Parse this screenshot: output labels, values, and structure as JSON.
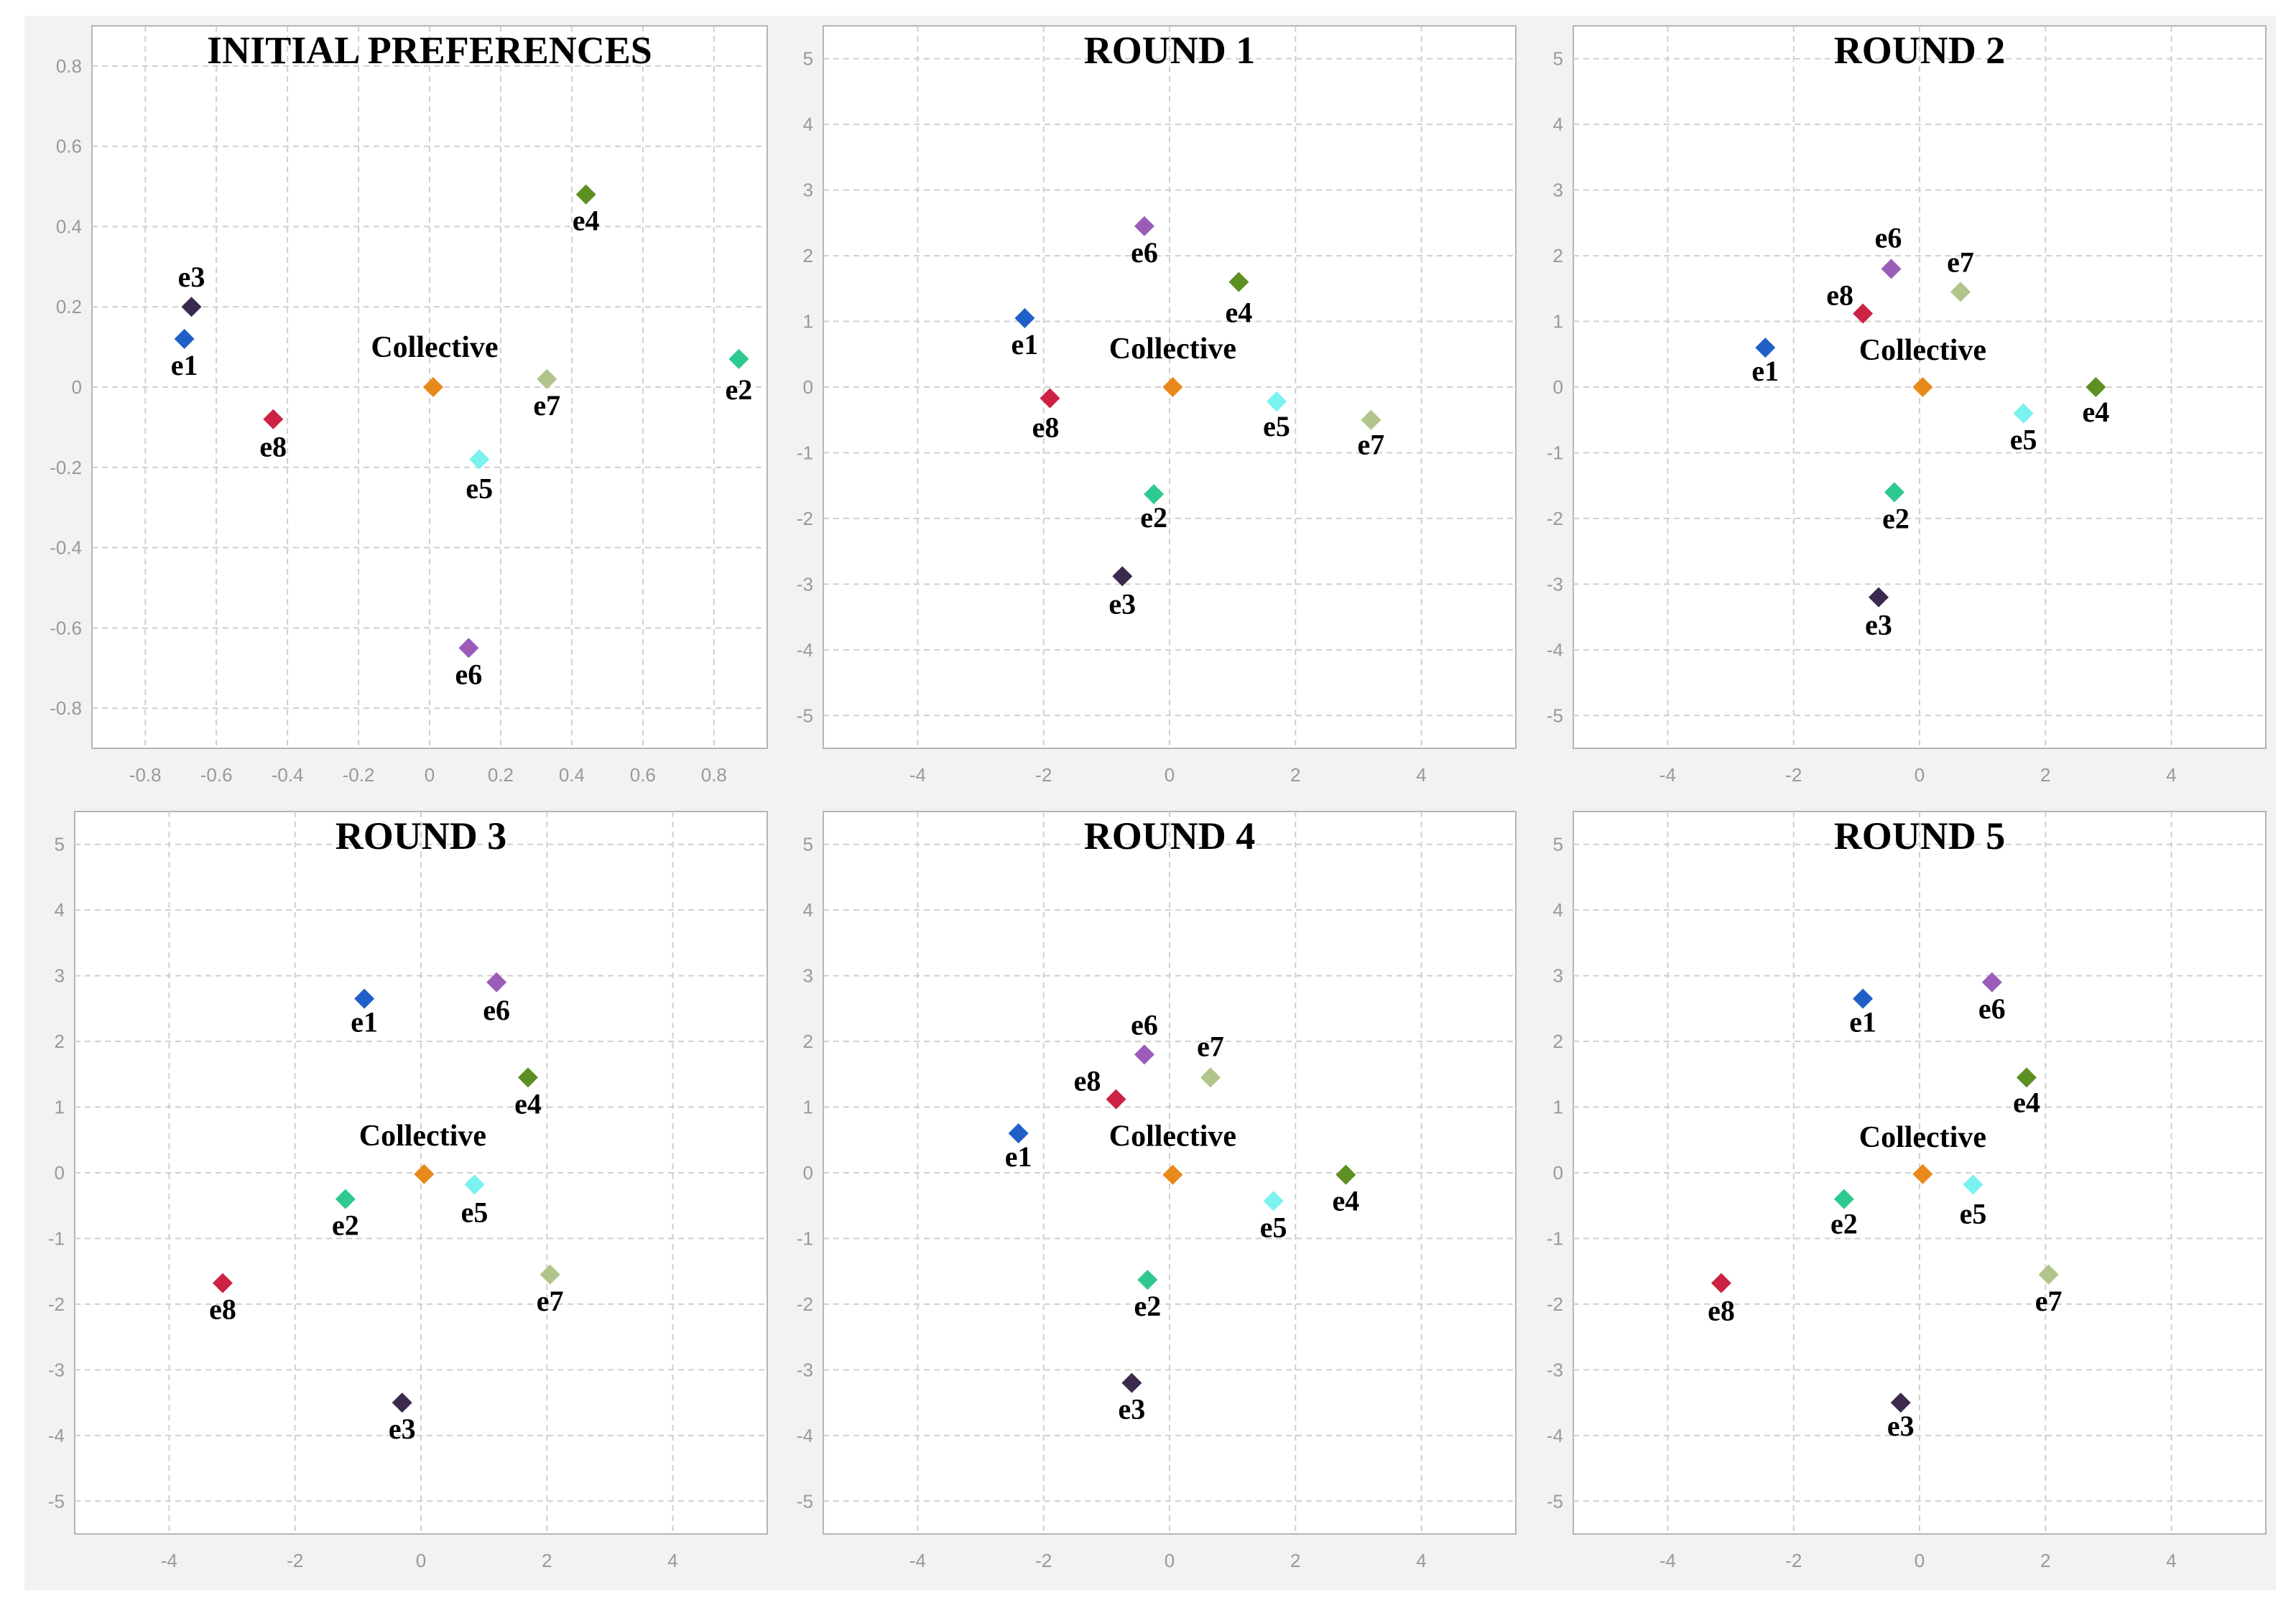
{
  "chart_data": [
    {
      "type": "scatter",
      "title": "INITIAL PREFERENCES",
      "xlim": [
        -0.95,
        0.95
      ],
      "ylim": [
        -0.9,
        0.9
      ],
      "xticks": [
        "-0.8",
        "-0.6",
        "-0.4",
        "-0.2",
        "0",
        "0.2",
        "0.4",
        "0.6",
        "0.8"
      ],
      "xtick_values": [
        -0.8,
        -0.6,
        -0.4,
        -0.2,
        0,
        0.2,
        0.4,
        0.6,
        0.8
      ],
      "yticks": [
        "0.8",
        "0.6",
        "0.4",
        "0.2",
        "0",
        "-0.2",
        "-0.4",
        "-0.6",
        "-0.8"
      ],
      "ytick_values": [
        0.8,
        0.6,
        0.4,
        0.2,
        0,
        -0.2,
        -0.4,
        -0.6,
        -0.8
      ],
      "grid": true,
      "points": [
        {
          "label": "e1",
          "x": -0.69,
          "y": 0.12
        },
        {
          "label": "e2",
          "x": 0.87,
          "y": 0.07
        },
        {
          "label": "e3",
          "x": -0.67,
          "y": 0.2
        },
        {
          "label": "e4",
          "x": 0.44,
          "y": 0.48
        },
        {
          "label": "e5",
          "x": 0.14,
          "y": -0.18
        },
        {
          "label": "e6",
          "x": 0.11,
          "y": -0.65
        },
        {
          "label": "e7",
          "x": 0.33,
          "y": 0.02
        },
        {
          "label": "e8",
          "x": -0.44,
          "y": -0.08
        },
        {
          "label": "Collective",
          "x": 0.01,
          "y": 0.0
        }
      ]
    },
    {
      "type": "scatter",
      "title": "ROUND 1",
      "xlim": [
        -5.5,
        5.5
      ],
      "ylim": [
        -5.5,
        5.5
      ],
      "xticks": [
        "-4",
        "-2",
        "0",
        "2",
        "4"
      ],
      "xtick_values": [
        -4,
        -2,
        0,
        2,
        4
      ],
      "yticks": [
        "5",
        "4",
        "3",
        "2",
        "1",
        "0",
        "-1",
        "-2",
        "-3",
        "-4",
        "-5"
      ],
      "ytick_values": [
        5,
        4,
        3,
        2,
        1,
        0,
        -1,
        -2,
        -3,
        -4,
        -5
      ],
      "grid": true,
      "points": [
        {
          "label": "e1",
          "x": -2.3,
          "y": 1.05
        },
        {
          "label": "e2",
          "x": -0.25,
          "y": -1.63
        },
        {
          "label": "e3",
          "x": -0.75,
          "y": -2.88
        },
        {
          "label": "e4",
          "x": 1.1,
          "y": 1.6
        },
        {
          "label": "e5",
          "x": 1.7,
          "y": -0.22
        },
        {
          "label": "e6",
          "x": -0.4,
          "y": 2.45
        },
        {
          "label": "e7",
          "x": 3.2,
          "y": -0.5
        },
        {
          "label": "e8",
          "x": -1.9,
          "y": -0.17
        },
        {
          "label": "Collective",
          "x": 0.05,
          "y": 0.0
        }
      ]
    },
    {
      "type": "scatter",
      "title": "ROUND 2",
      "xlim": [
        -5.5,
        5.5
      ],
      "ylim": [
        -5.5,
        5.5
      ],
      "xticks": [
        "-4",
        "-2",
        "0",
        "2",
        "4"
      ],
      "xtick_values": [
        -4,
        -2,
        0,
        2,
        4
      ],
      "yticks": [
        "5",
        "4",
        "3",
        "2",
        "1",
        "0",
        "-1",
        "-2",
        "-3",
        "-4",
        "-5"
      ],
      "ytick_values": [
        5,
        4,
        3,
        2,
        1,
        0,
        -1,
        -2,
        -3,
        -4,
        -5
      ],
      "grid": true,
      "points": [
        {
          "label": "e1",
          "x": -2.45,
          "y": 0.6
        },
        {
          "label": "e2",
          "x": -0.4,
          "y": -1.6
        },
        {
          "label": "e3",
          "x": -0.65,
          "y": -3.2
        },
        {
          "label": "e4",
          "x": 2.8,
          "y": 0.0
        },
        {
          "label": "e5",
          "x": 1.65,
          "y": -0.4
        },
        {
          "label": "e6",
          "x": -0.45,
          "y": 1.8
        },
        {
          "label": "e7",
          "x": 0.65,
          "y": 1.45
        },
        {
          "label": "e8",
          "x": -0.9,
          "y": 1.12
        },
        {
          "label": "Collective",
          "x": 0.05,
          "y": 0.0
        }
      ]
    },
    {
      "type": "scatter",
      "title": "ROUND 3",
      "xlim": [
        -5.5,
        5.5
      ],
      "ylim": [
        -5.5,
        5.5
      ],
      "xticks": [
        "-4",
        "-2",
        "0",
        "2",
        "4"
      ],
      "xtick_values": [
        -4,
        -2,
        0,
        2,
        4
      ],
      "yticks": [
        "5",
        "4",
        "3",
        "2",
        "1",
        "0",
        "-1",
        "-2",
        "-3",
        "-4",
        "-5"
      ],
      "ytick_values": [
        5,
        4,
        3,
        2,
        1,
        0,
        -1,
        -2,
        -3,
        -4,
        -5
      ],
      "grid": true,
      "points": [
        {
          "label": "e1",
          "x": -0.9,
          "y": 2.65
        },
        {
          "label": "e2",
          "x": -1.2,
          "y": -0.4
        },
        {
          "label": "e3",
          "x": -0.3,
          "y": -3.5
        },
        {
          "label": "e4",
          "x": 1.7,
          "y": 1.45
        },
        {
          "label": "e5",
          "x": 0.85,
          "y": -0.18
        },
        {
          "label": "e6",
          "x": 1.2,
          "y": 2.9
        },
        {
          "label": "e7",
          "x": 2.05,
          "y": -1.55
        },
        {
          "label": "e8",
          "x": -3.15,
          "y": -1.68
        },
        {
          "label": "Collective",
          "x": 0.05,
          "y": -0.02
        }
      ]
    },
    {
      "type": "scatter",
      "title": "ROUND 4",
      "xlim": [
        -5.5,
        5.5
      ],
      "ylim": [
        -5.5,
        5.5
      ],
      "xticks": [
        "-4",
        "-2",
        "0",
        "2",
        "4"
      ],
      "xtick_values": [
        -4,
        -2,
        0,
        2,
        4
      ],
      "yticks": [
        "5",
        "4",
        "3",
        "2",
        "1",
        "0",
        "-1",
        "-2",
        "-3",
        "-4",
        "-5"
      ],
      "ytick_values": [
        5,
        4,
        3,
        2,
        1,
        0,
        -1,
        -2,
        -3,
        -4,
        -5
      ],
      "grid": true,
      "points": [
        {
          "label": "e1",
          "x": -2.4,
          "y": 0.6
        },
        {
          "label": "e2",
          "x": -0.35,
          "y": -1.63
        },
        {
          "label": "e3",
          "x": -0.6,
          "y": -3.2
        },
        {
          "label": "e4",
          "x": 2.8,
          "y": -0.03
        },
        {
          "label": "e5",
          "x": 1.65,
          "y": -0.43
        },
        {
          "label": "e6",
          "x": -0.4,
          "y": 1.8
        },
        {
          "label": "e7",
          "x": 0.65,
          "y": 1.45
        },
        {
          "label": "e8",
          "x": -0.85,
          "y": 1.12
        },
        {
          "label": "Collective",
          "x": 0.05,
          "y": -0.03
        }
      ]
    },
    {
      "type": "scatter",
      "title": "ROUND 5",
      "xlim": [
        -5.5,
        5.5
      ],
      "ylim": [
        -5.5,
        5.5
      ],
      "xticks": [
        "-4",
        "-2",
        "0",
        "2",
        "4"
      ],
      "xtick_values": [
        -4,
        -2,
        0,
        2,
        4
      ],
      "yticks": [
        "5",
        "4",
        "3",
        "2",
        "1",
        "0",
        "-1",
        "-2",
        "-3",
        "-4",
        "-5"
      ],
      "ytick_values": [
        5,
        4,
        3,
        2,
        1,
        0,
        -1,
        -2,
        -3,
        -4,
        -5
      ],
      "grid": true,
      "points": [
        {
          "label": "e1",
          "x": -0.9,
          "y": 2.65
        },
        {
          "label": "e2",
          "x": -1.2,
          "y": -0.4
        },
        {
          "label": "e3",
          "x": -0.3,
          "y": -3.5
        },
        {
          "label": "e4",
          "x": 1.7,
          "y": 1.45
        },
        {
          "label": "e5",
          "x": 0.85,
          "y": -0.18
        },
        {
          "label": "e6",
          "x": 1.15,
          "y": 2.9
        },
        {
          "label": "e7",
          "x": 2.05,
          "y": -1.55
        },
        {
          "label": "e8",
          "x": -3.15,
          "y": -1.68
        },
        {
          "label": "Collective",
          "x": 0.05,
          "y": -0.02
        }
      ]
    }
  ],
  "colors": {
    "e1": "#1f5fc7",
    "e2": "#2ec98e",
    "e3": "#3b2a4e",
    "e4": "#5e8f22",
    "e5": "#79f2f0",
    "e6": "#9b5cb8",
    "e7": "#b1c48a",
    "e8": "#cc2244",
    "Collective": "#e8891c",
    "axis": "#b5b5b5",
    "grid": "#cfcfcf",
    "tick_text": "#999999"
  }
}
